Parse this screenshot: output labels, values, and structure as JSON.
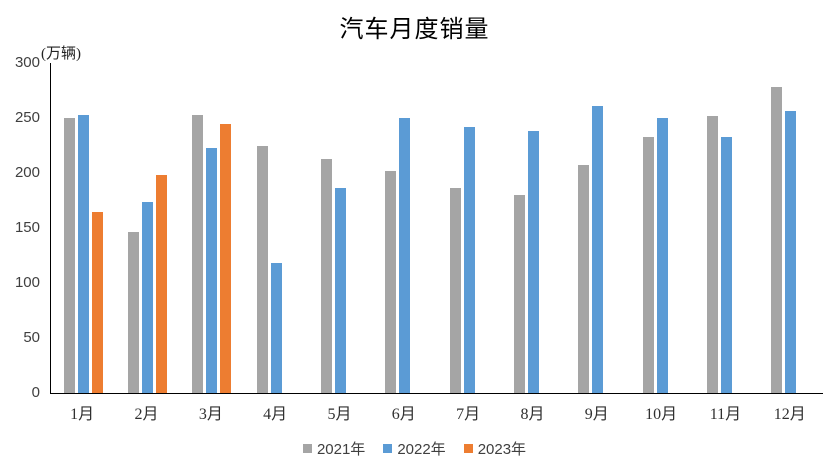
{
  "chart_data": {
    "type": "bar",
    "title": "汽车月度销量",
    "unit_label": "(万辆)",
    "categories": [
      "1月",
      "2月",
      "3月",
      "4月",
      "5月",
      "6月",
      "7月",
      "8月",
      "9月",
      "10月",
      "11月",
      "12月"
    ],
    "series": [
      {
        "name": "2021年",
        "color": "#A5A5A5",
        "values": [
          250,
          146,
          253,
          225,
          213,
          202,
          186,
          180,
          207,
          233,
          252,
          278
        ]
      },
      {
        "name": "2022年",
        "color": "#5B9BD5",
        "values": [
          253,
          174,
          223,
          118,
          186,
          250,
          242,
          238,
          261,
          250,
          233,
          256
        ]
      },
      {
        "name": "2023年",
        "color": "#ED7D31",
        "values": [
          165,
          198,
          245,
          null,
          null,
          null,
          null,
          null,
          null,
          null,
          null,
          null
        ]
      }
    ],
    "ylim": [
      0,
      300
    ],
    "y_ticks": [
      0,
      50,
      100,
      150,
      200,
      250,
      300
    ],
    "grid": false,
    "legend_position": "bottom",
    "axis_color": "#000000",
    "tick_label_color": "#3f3f3f"
  }
}
